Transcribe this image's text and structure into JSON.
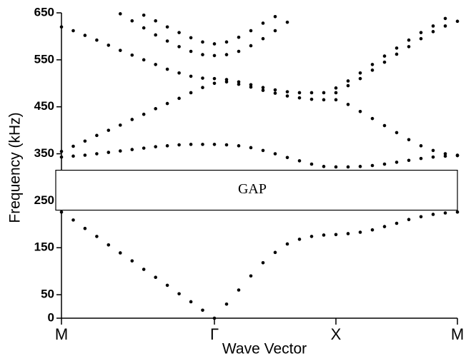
{
  "chart_data": {
    "type": "scatter",
    "xlabel": "Wave Vector",
    "ylabel": "Frequency (kHz)",
    "xlim": [
      0,
      554
    ],
    "ylim": [
      0,
      650
    ],
    "xticks": [
      {
        "value": 0,
        "label": "M"
      },
      {
        "value": 214,
        "label": "Γ"
      },
      {
        "value": 384,
        "label": "X"
      },
      {
        "value": 554,
        "label": "M"
      }
    ],
    "yticks": [
      0,
      50,
      150,
      250,
      350,
      450,
      550,
      650
    ],
    "color": "#000000",
    "gap": {
      "label": "GAP",
      "range": [
        230,
        315
      ]
    },
    "series": [
      {
        "x": [
          0,
          16.5,
          32.9,
          49.4,
          65.8,
          82.3,
          98.8,
          115.2,
          131.7,
          148.1,
          164.6,
          181.1,
          197.5,
          214,
          231,
          248,
          265,
          282,
          299,
          316,
          333,
          350,
          367,
          384,
          401,
          418,
          435,
          452,
          469,
          486,
          503,
          520,
          537,
          554
        ],
        "values": [
          226,
          209,
          191,
          174,
          156,
          139,
          122,
          104,
          87,
          70,
          52,
          35,
          17,
          0,
          30,
          60,
          90,
          118,
          140,
          158,
          168,
          174,
          177,
          178,
          180,
          183,
          188,
          195,
          202,
          210,
          216,
          221,
          224,
          226
        ]
      },
      {
        "x": [
          0,
          16.5,
          32.9,
          49.4,
          65.8,
          82.3,
          98.8,
          115.2,
          131.7,
          148.1,
          164.6,
          181.1,
          197.5,
          214,
          231,
          248,
          265,
          282,
          299,
          316,
          333,
          350,
          367,
          384,
          401,
          418,
          435,
          452,
          469,
          486,
          503,
          520,
          537,
          554
        ],
        "values": [
          343,
          345,
          347,
          350,
          353,
          356,
          359,
          362,
          365,
          367,
          369,
          370,
          370,
          370,
          369,
          367,
          363,
          357,
          350,
          342,
          335,
          328,
          323,
          322,
          322,
          323,
          325,
          328,
          332,
          336,
          340,
          343,
          345,
          346
        ]
      },
      {
        "x": [
          0,
          16.5,
          32.9,
          49.4,
          65.8,
          82.3,
          98.8,
          115.2,
          131.7,
          148.1,
          164.6,
          181.1,
          197.5,
          214,
          231,
          248,
          265,
          282,
          299,
          316,
          333,
          350,
          367,
          384,
          401,
          418,
          435,
          452,
          469,
          486,
          503,
          520,
          537,
          554
        ],
        "values": [
          355,
          366,
          377,
          389,
          400,
          411,
          423,
          434,
          446,
          457,
          468,
          480,
          491,
          500,
          503,
          498,
          492,
          485,
          479,
          473,
          469,
          466,
          465,
          465,
          455,
          440,
          425,
          410,
          395,
          380,
          367,
          357,
          350,
          347
        ]
      },
      {
        "x": [
          0,
          16.5,
          32.9,
          49.4,
          65.8,
          82.3,
          98.8,
          115.2,
          131.7,
          148.1,
          164.6,
          181.1,
          197.5,
          214,
          231,
          248,
          265,
          282,
          299,
          316,
          333,
          350,
          367,
          384,
          401,
          418,
          435,
          452,
          469,
          486,
          503,
          520,
          537,
          554
        ],
        "values": [
          620,
          612,
          602,
          592,
          581,
          570,
          560,
          550,
          540,
          530,
          522,
          515,
          511,
          510,
          508,
          503,
          497,
          491,
          486,
          482,
          480,
          480,
          480,
          480,
          495,
          510,
          528,
          545,
          562,
          578,
          595,
          610,
          622,
          632
        ]
      },
      {
        "x": [
          82.3,
          98.8,
          115.2,
          131.7,
          148.1,
          164.6,
          181.1,
          197.5,
          214,
          231,
          248,
          265,
          282,
          299,
          316
        ],
        "values": [
          648,
          633,
          618,
          603,
          590,
          578,
          568,
          561,
          559,
          561,
          568,
          580,
          595,
          612,
          630
        ]
      },
      {
        "x": [
          115.2,
          131.7,
          148.1,
          164.6,
          181.1,
          197.5,
          214,
          231,
          248,
          265,
          282,
          299
        ],
        "values": [
          645,
          633,
          620,
          608,
          597,
          588,
          584,
          588,
          598,
          612,
          628,
          642
        ]
      },
      {
        "x": [
          384,
          401,
          418,
          435,
          452,
          469,
          486,
          503,
          520,
          537
        ],
        "values": [
          490,
          505,
          522,
          540,
          558,
          575,
          592,
          608,
          622,
          638
        ]
      }
    ]
  }
}
